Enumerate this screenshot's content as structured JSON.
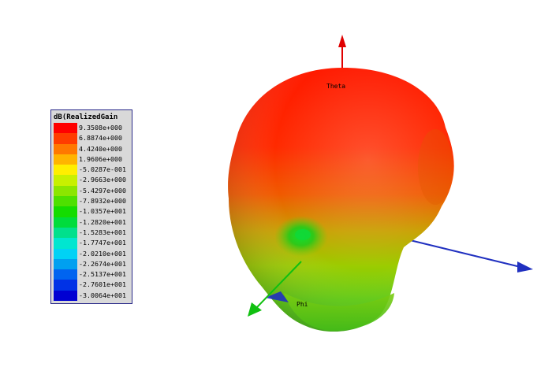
{
  "chart_data": {
    "type": "3d-radiation-pattern",
    "title": "dB(RealizedGain",
    "legend_placement": "left",
    "legend": [
      {
        "value": "9.3508e+000",
        "color": "#ff0000"
      },
      {
        "value": "6.8874e+000",
        "color": "#ff3c00"
      },
      {
        "value": "4.4240e+000",
        "color": "#ff7800"
      },
      {
        "value": "1.9606e+000",
        "color": "#ffb400"
      },
      {
        "value": "-5.0287e-001",
        "color": "#ffee00"
      },
      {
        "value": "-2.9663e+000",
        "color": "#c8f000"
      },
      {
        "value": "-5.4297e+000",
        "color": "#8ce600"
      },
      {
        "value": "-7.8932e+000",
        "color": "#4ee000"
      },
      {
        "value": "-1.0357e+001",
        "color": "#14dc00"
      },
      {
        "value": "-1.2820e+001",
        "color": "#00dc3c"
      },
      {
        "value": "-1.5283e+001",
        "color": "#00e08c"
      },
      {
        "value": "-1.7747e+001",
        "color": "#00e6d0"
      },
      {
        "value": "-2.0210e+001",
        "color": "#00d2f5"
      },
      {
        "value": "-2.2674e+001",
        "color": "#00a0f0"
      },
      {
        "value": "-2.5137e+001",
        "color": "#0064f0"
      },
      {
        "value": "-2.7601e+001",
        "color": "#0032e6"
      },
      {
        "value": "-3.0064e+001",
        "color": "#0000d2"
      }
    ],
    "axes": {
      "theta": "Theta",
      "phi": "Phi"
    },
    "colors": {
      "theta_axis": "#e00000",
      "x_axis": "#2030c0",
      "y_axis": "#10c010"
    }
  }
}
